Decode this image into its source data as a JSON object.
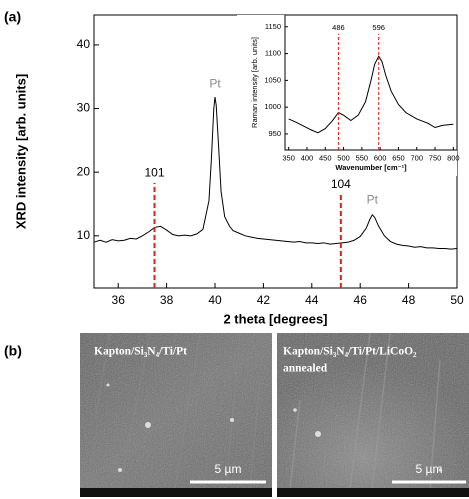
{
  "panel_labels": [
    "(a)",
    "(b)"
  ],
  "chart_data": [
    {
      "type": "line",
      "x_label": "2 theta [degrees]",
      "y_label": "XRD intensity [arb. units]",
      "xlim": [
        35,
        50
      ],
      "ylim": [
        1.8,
        44.7
      ],
      "xticks": [
        36,
        38,
        40,
        42,
        44,
        46,
        48,
        50
      ],
      "yticks": [
        10,
        20,
        30,
        40
      ],
      "color": "#000000",
      "x": [
        35,
        35.25,
        35.5,
        35.75,
        36,
        36.25,
        36.5,
        36.75,
        37,
        37.25,
        37.5,
        37.75,
        38,
        38.25,
        38.5,
        38.75,
        39,
        39.25,
        39.5,
        39.75,
        39.85,
        39.95,
        40,
        40.05,
        40.15,
        40.25,
        40.4,
        40.6,
        40.75,
        41,
        41.25,
        41.5,
        41.75,
        42,
        42.25,
        42.5,
        42.75,
        43,
        43.25,
        43.5,
        43.75,
        44,
        44.25,
        44.5,
        44.75,
        45,
        45.25,
        45.5,
        45.75,
        46,
        46.25,
        46.4,
        46.5,
        46.6,
        46.75,
        47,
        47.25,
        47.5,
        47.75,
        48,
        48.25,
        48.5,
        48.75,
        49,
        49.25,
        49.5,
        49.75,
        50
      ],
      "values": [
        9.0,
        9.3,
        9.0,
        9.4,
        9.2,
        9.3,
        9.6,
        9.5,
        10.0,
        10.6,
        11.3,
        11.5,
        10.9,
        10.2,
        10.0,
        10.1,
        10.0,
        10.3,
        11.0,
        15.5,
        22,
        30,
        31.8,
        30.5,
        24,
        17,
        13,
        11.5,
        10.8,
        10.4,
        10.0,
        9.8,
        9.6,
        9.5,
        9.4,
        9.3,
        9.2,
        9.1,
        9.0,
        9.1,
        8.9,
        8.9,
        8.8,
        8.9,
        8.7,
        8.8,
        8.9,
        9.0,
        9.3,
        9.9,
        11.2,
        12.6,
        13.3,
        12.9,
        11.6,
        10.0,
        9.1,
        8.7,
        8.5,
        8.4,
        8.2,
        8.3,
        8.1,
        8.1,
        8.0,
        8.0,
        7.9,
        8.0
      ],
      "reference_color": "#e0201b",
      "reference_lines": [
        {
          "x": 37.5,
          "label": "101",
          "y": 19.8
        },
        {
          "x": 45.2,
          "label": "104",
          "y": 18.0
        }
      ],
      "peak_label_color": "#8a8a8a",
      "peak_labels": [
        {
          "text": "Pt",
          "x": 40,
          "y": 33.8
        },
        {
          "text": "Pt",
          "x": 46.5,
          "y": 15.6
        }
      ]
    },
    {
      "type": "line",
      "x_label": "Wavenumber [cm⁻¹]",
      "y_label": "Raman intensity [arb. units]",
      "xlim": [
        340,
        810
      ],
      "ylim": [
        920,
        1172
      ],
      "xticks": [
        350,
        400,
        450,
        500,
        550,
        600,
        650,
        700,
        750,
        800
      ],
      "yticks": [
        950,
        1000,
        1050,
        1100,
        1150
      ],
      "color": "#000000",
      "x": [
        350,
        370,
        390,
        410,
        430,
        450,
        470,
        486,
        500,
        520,
        540,
        560,
        575,
        585,
        596,
        605,
        615,
        630,
        650,
        670,
        700,
        730,
        750,
        770,
        800
      ],
      "values": [
        978,
        972,
        965,
        958,
        952,
        960,
        975,
        990,
        985,
        975,
        985,
        1010,
        1050,
        1080,
        1095,
        1085,
        1060,
        1030,
        1005,
        990,
        978,
        970,
        962,
        966,
        968
      ],
      "reference_color": "#e0201b",
      "reference_lines": [
        {
          "x": 486,
          "label": "486",
          "y": 1148
        },
        {
          "x": 596,
          "label": "596",
          "y": 1148
        }
      ]
    }
  ],
  "images": [
    {
      "caption": [
        "Kapton/Si₃N₄/Ti/Pt"
      ],
      "scale_bar": "5 µm"
    },
    {
      "caption": [
        "Kapton/Si₃N₄/Ti/Pt/LiCoO₂",
        "annealed"
      ],
      "scale_bar": "5 µm"
    }
  ]
}
